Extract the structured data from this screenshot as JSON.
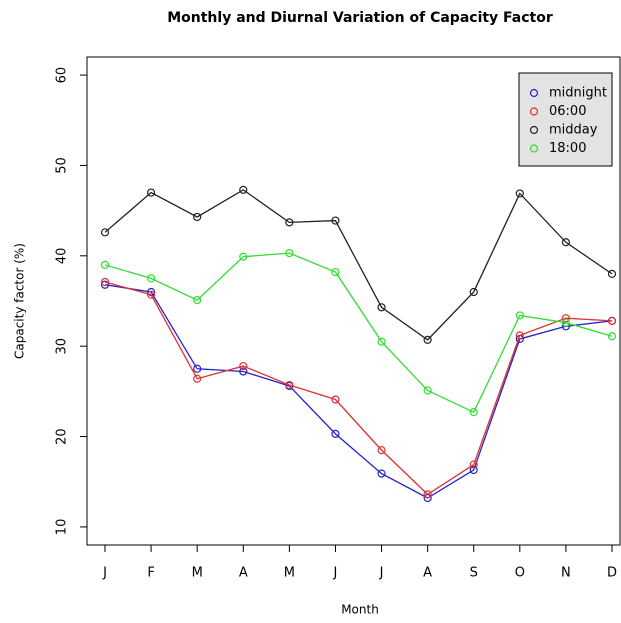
{
  "chart_data": {
    "type": "line",
    "title": "Monthly and Diurnal Variation of Capacity Factor",
    "x_label": "Month",
    "y_label": "Capacity factor (%)",
    "categories": [
      "J",
      "F",
      "M",
      "A",
      "M",
      "J",
      "J",
      "A",
      "S",
      "O",
      "N",
      "D"
    ],
    "series": [
      {
        "name": "midnight",
        "color": "#2222cc",
        "values": [
          36.8,
          36.0,
          27.5,
          27.2,
          25.6,
          20.3,
          15.9,
          13.2,
          16.3,
          30.8,
          32.2,
          32.8
        ]
      },
      {
        "name": "06:00",
        "color": "#dd3333",
        "values": [
          37.1,
          35.7,
          26.4,
          27.8,
          25.7,
          24.1,
          18.5,
          13.6,
          16.9,
          31.2,
          33.1,
          32.8
        ]
      },
      {
        "name": "midday",
        "color": "#222222",
        "values": [
          42.6,
          47.0,
          44.3,
          47.3,
          43.7,
          43.9,
          34.3,
          30.7,
          36.0,
          46.9,
          41.5,
          38.0
        ]
      },
      {
        "name": "18:00",
        "color": "#33dd33",
        "values": [
          39.0,
          37.5,
          35.1,
          39.9,
          40.3,
          38.2,
          30.5,
          25.1,
          22.7,
          33.4,
          32.6,
          31.1
        ]
      }
    ],
    "ylim": [
      8,
      62
    ],
    "yticks": [
      10,
      20,
      30,
      40,
      50,
      60
    ],
    "legend": "topright"
  }
}
